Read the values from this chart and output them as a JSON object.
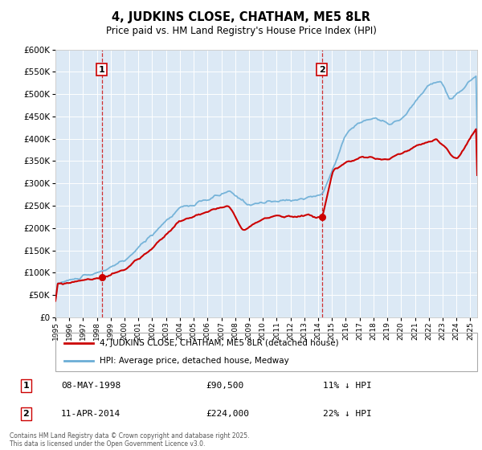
{
  "title": "4, JUDKINS CLOSE, CHATHAM, ME5 8LR",
  "subtitle": "Price paid vs. HM Land Registry's House Price Index (HPI)",
  "background_color": "#dce9f5",
  "plot_background": "#dce9f5",
  "hpi_color": "#6baed6",
  "price_color": "#cc0000",
  "dashed_color": "#cc0000",
  "ylim": [
    0,
    600000
  ],
  "yticks": [
    0,
    50000,
    100000,
    150000,
    200000,
    250000,
    300000,
    350000,
    400000,
    450000,
    500000,
    550000,
    600000
  ],
  "transaction1_date": "08-MAY-1998",
  "transaction1_price": 90500,
  "transaction1_hpi_pct": "11% ↓ HPI",
  "transaction1_x": 1998.35,
  "transaction2_date": "11-APR-2014",
  "transaction2_price": 224000,
  "transaction2_hpi_pct": "22% ↓ HPI",
  "transaction2_x": 2014.27,
  "legend_label1": "4, JUDKINS CLOSE, CHATHAM, ME5 8LR (detached house)",
  "legend_label2": "HPI: Average price, detached house, Medway",
  "footnote": "Contains HM Land Registry data © Crown copyright and database right 2025.\nThis data is licensed under the Open Government Licence v3.0.",
  "xmin": 1995,
  "xmax": 2025.5
}
